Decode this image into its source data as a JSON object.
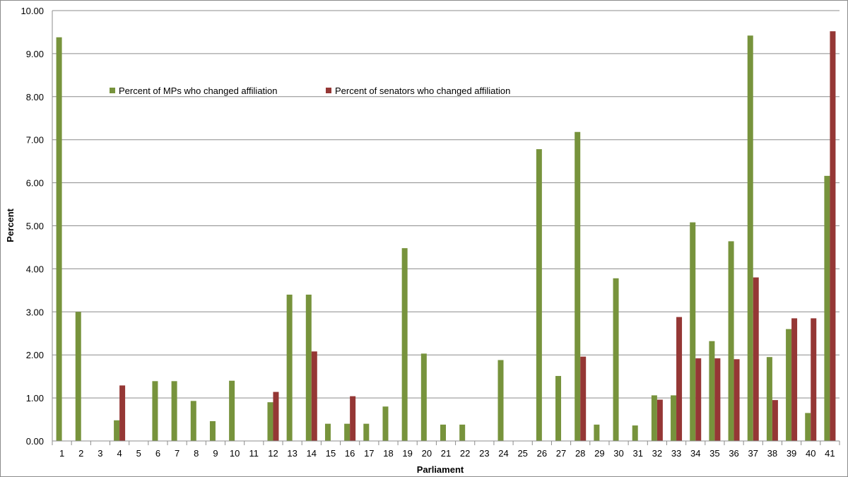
{
  "chart_data": {
    "type": "bar",
    "title": "",
    "xlabel": "Parliament",
    "ylabel": "Percent",
    "ylim": [
      0,
      10
    ],
    "yticks": [
      "0.00",
      "1.00",
      "2.00",
      "3.00",
      "4.00",
      "5.00",
      "6.00",
      "7.00",
      "8.00",
      "9.00",
      "10.00"
    ],
    "grid": true,
    "legend_position": "top-left inside",
    "categories": [
      "1",
      "2",
      "3",
      "4",
      "5",
      "6",
      "7",
      "8",
      "9",
      "10",
      "11",
      "12",
      "13",
      "14",
      "15",
      "16",
      "17",
      "18",
      "19",
      "20",
      "21",
      "22",
      "23",
      "24",
      "25",
      "26",
      "27",
      "28",
      "29",
      "30",
      "31",
      "32",
      "33",
      "34",
      "35",
      "36",
      "37",
      "38",
      "39",
      "40",
      "41"
    ],
    "series": [
      {
        "name": "Percent of MPs who changed affiliation",
        "color": "#77933C",
        "values": [
          9.38,
          3.0,
          0,
          0.48,
          0,
          1.39,
          1.39,
          0.93,
          0.46,
          1.4,
          0,
          0.9,
          3.4,
          3.4,
          0.4,
          0.4,
          0.4,
          0.8,
          4.48,
          2.03,
          0.38,
          0.38,
          0,
          1.88,
          0,
          6.78,
          1.51,
          7.18,
          0.38,
          3.78,
          0.36,
          1.06,
          1.06,
          5.08,
          2.32,
          4.64,
          9.42,
          1.95,
          2.6,
          0.65,
          6.16
        ]
      },
      {
        "name": "Percent of senators who changed affiliation",
        "color": "#953735",
        "values": [
          0,
          0,
          0,
          1.29,
          0,
          0,
          0,
          0,
          0,
          0,
          0,
          1.14,
          0,
          2.08,
          0,
          1.04,
          0,
          0,
          0,
          0,
          0,
          0,
          0,
          0,
          0,
          0,
          0,
          1.96,
          0,
          0,
          0,
          0.96,
          2.88,
          1.92,
          1.92,
          1.9,
          3.8,
          0.95,
          2.85,
          2.85,
          9.52
        ]
      }
    ]
  }
}
